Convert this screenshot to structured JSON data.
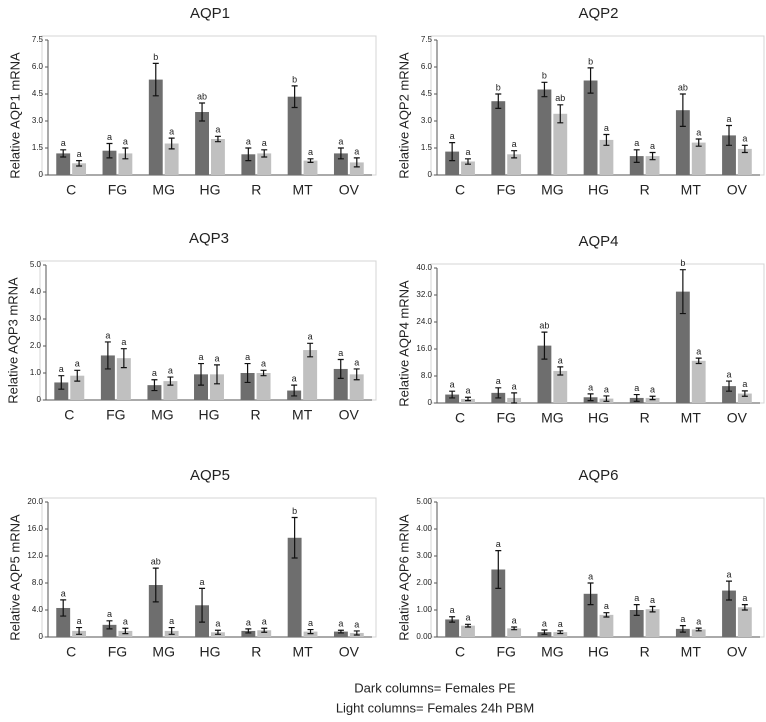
{
  "chart_data": [
    {
      "type": "bar",
      "title": "AQP1",
      "ylabel": "Relative AQP1 mRNA",
      "categories": [
        "C",
        "FG",
        "MG",
        "HG",
        "R",
        "MT",
        "OV"
      ],
      "ylim": [
        0,
        7.5
      ],
      "yticks": [
        0,
        1.5,
        {
          "value": 3,
          "label": "3.0"
        },
        4.5,
        {
          "value": 6,
          "label": "6.0"
        },
        7.5
      ],
      "grid": false,
      "series": [
        {
          "color": "#6e6e6e",
          "values": [
            1.2,
            1.35,
            5.3,
            3.5,
            1.15,
            4.35,
            1.2
          ],
          "errors": [
            0.2,
            0.4,
            0.9,
            0.5,
            0.35,
            0.6,
            0.3
          ],
          "annotations": [
            "a",
            "a",
            "b",
            "ab",
            "a",
            "b",
            "a"
          ]
        },
        {
          "color": "#c0c0c0",
          "values": [
            0.65,
            1.2,
            1.75,
            2.0,
            1.2,
            0.8,
            0.7
          ],
          "errors": [
            0.15,
            0.3,
            0.3,
            0.15,
            0.2,
            0.1,
            0.25
          ],
          "annotations": [
            "a",
            "a",
            "a",
            "a",
            "a",
            "a",
            "a"
          ]
        }
      ]
    },
    {
      "type": "bar",
      "title": "AQP2",
      "ylabel": "Relative AQP2 mRNA",
      "categories": [
        "C",
        "FG",
        "MG",
        "HG",
        "R",
        "MT",
        "OV"
      ],
      "ylim": [
        0,
        7.5
      ],
      "yticks": [
        0,
        1.5,
        {
          "value": 3,
          "label": "3.0"
        },
        4.5,
        {
          "value": 6,
          "label": "6.0"
        },
        7.5
      ],
      "grid": false,
      "series": [
        {
          "color": "#6e6e6e",
          "values": [
            1.3,
            4.1,
            4.75,
            5.25,
            1.05,
            3.6,
            2.2
          ],
          "errors": [
            0.5,
            0.4,
            0.4,
            0.7,
            0.35,
            0.9,
            0.55
          ],
          "annotations": [
            "a",
            "b",
            "b",
            "b",
            "a",
            "ab",
            "a"
          ]
        },
        {
          "color": "#c0c0c0",
          "values": [
            0.75,
            1.15,
            3.4,
            1.95,
            1.05,
            1.8,
            1.45
          ],
          "errors": [
            0.15,
            0.2,
            0.5,
            0.3,
            0.2,
            0.2,
            0.2
          ],
          "annotations": [
            "a",
            "a",
            "ab",
            "a",
            "a",
            "a",
            "a"
          ]
        }
      ]
    },
    {
      "type": "bar",
      "title": "AQP3",
      "ylabel": "Relative AQP3 mRNA",
      "categories": [
        "C",
        "FG",
        "MG",
        "HG",
        "R",
        "MT",
        "OV"
      ],
      "ylim": [
        0,
        5
      ],
      "yticks": [
        0,
        {
          "value": 1,
          "label": "1.0"
        },
        {
          "value": 2,
          "label": "2.0"
        },
        {
          "value": 3,
          "label": "3.0"
        },
        {
          "value": 4,
          "label": "4.0"
        },
        {
          "value": 5,
          "label": "5.0"
        }
      ],
      "grid": false,
      "series": [
        {
          "color": "#6e6e6e",
          "values": [
            0.65,
            1.65,
            0.55,
            0.95,
            1.0,
            0.35,
            1.15
          ],
          "errors": [
            0.25,
            0.5,
            0.2,
            0.4,
            0.35,
            0.2,
            0.35
          ],
          "annotations": [
            "a",
            "a",
            "a",
            "a",
            "a",
            "a",
            "a"
          ]
        },
        {
          "color": "#c0c0c0",
          "values": [
            0.9,
            1.55,
            0.7,
            0.95,
            1.0,
            1.85,
            0.95
          ],
          "errors": [
            0.2,
            0.35,
            0.15,
            0.35,
            0.1,
            0.25,
            0.2
          ],
          "annotations": [
            "a",
            "a",
            "a",
            "a",
            "a",
            "a",
            "a"
          ]
        }
      ]
    },
    {
      "type": "bar",
      "title": "AQP4",
      "ylabel": "Relative AQP4 mRNA",
      "categories": [
        "C",
        "FG",
        "MG",
        "HG",
        "R",
        "MT",
        "OV"
      ],
      "ylim": [
        0,
        40
      ],
      "yticks": [
        0,
        {
          "value": 8,
          "label": "8.0"
        },
        {
          "value": 16,
          "label": "16.0"
        },
        {
          "value": 24,
          "label": "24.0"
        },
        {
          "value": 32,
          "label": "32.0"
        },
        {
          "value": 40,
          "label": "40.0"
        }
      ],
      "grid": false,
      "series": [
        {
          "color": "#6e6e6e",
          "values": [
            2.5,
            3,
            17,
            1.7,
            1.5,
            33,
            5
          ],
          "errors": [
            1,
            1.5,
            4,
            1,
            1,
            6.5,
            1.5
          ],
          "annotations": [
            "a",
            "a",
            "ab",
            "a",
            "a",
            "b",
            "a"
          ]
        },
        {
          "color": "#c0c0c0",
          "values": [
            1.2,
            1.5,
            9.5,
            1.3,
            1.5,
            12.5,
            2.8
          ],
          "errors": [
            0.5,
            1.5,
            1.2,
            0.8,
            0.5,
            0.8,
            0.8
          ],
          "annotations": [
            "a",
            "a",
            "a",
            "a",
            "a",
            "a",
            "a"
          ]
        }
      ]
    },
    {
      "type": "bar",
      "title": "AQP5",
      "ylabel": "Relative AQP5 mRNA",
      "categories": [
        "C",
        "FG",
        "MG",
        "HG",
        "R",
        "MT",
        "OV"
      ],
      "ylim": [
        0,
        20
      ],
      "yticks": [
        0,
        {
          "value": 4,
          "label": "4.0"
        },
        {
          "value": 8,
          "label": "8.0"
        },
        {
          "value": 12,
          "label": "12.0"
        },
        {
          "value": 16,
          "label": "16.0"
        },
        {
          "value": 20,
          "label": "20.0"
        }
      ],
      "grid": false,
      "series": [
        {
          "color": "#6e6e6e",
          "values": [
            4.3,
            1.8,
            7.7,
            4.7,
            0.9,
            14.7,
            0.8
          ],
          "errors": [
            1.2,
            0.6,
            2.5,
            2.5,
            0.3,
            3,
            0.2
          ],
          "annotations": [
            "a",
            "a",
            "ab",
            "a",
            "a",
            "b",
            "a"
          ]
        },
        {
          "color": "#c0c0c0",
          "values": [
            0.9,
            0.9,
            0.9,
            0.7,
            1,
            0.8,
            0.6
          ],
          "errors": [
            0.5,
            0.4,
            0.5,
            0.3,
            0.3,
            0.3,
            0.3
          ],
          "annotations": [
            "a",
            "a",
            "a",
            "a",
            "a",
            "a",
            "a"
          ]
        }
      ]
    },
    {
      "type": "bar",
      "title": "AQP6",
      "ylabel": "Relative AQP6 mRNA",
      "categories": [
        "C",
        "FG",
        "MG",
        "HG",
        "R",
        "MT",
        "OV"
      ],
      "ylim": [
        0,
        5
      ],
      "yticks": [
        {
          "value": 0,
          "label": "0.00"
        },
        {
          "value": 1,
          "label": "1.00"
        },
        {
          "value": 2,
          "label": "2.00"
        },
        {
          "value": 3,
          "label": "3.00"
        },
        {
          "value": 4,
          "label": "4.00"
        },
        {
          "value": 5,
          "label": "5.00"
        }
      ],
      "grid": false,
      "series": [
        {
          "color": "#6e6e6e",
          "values": [
            0.65,
            2.5,
            0.18,
            1.6,
            1.0,
            0.3,
            1.72
          ],
          "errors": [
            0.1,
            0.7,
            0.08,
            0.4,
            0.2,
            0.12,
            0.35
          ],
          "annotations": [
            "a",
            "a",
            "a",
            "a",
            "a",
            "a",
            "a"
          ]
        },
        {
          "color": "#c0c0c0",
          "values": [
            0.42,
            0.32,
            0.18,
            0.82,
            1.03,
            0.28,
            1.1
          ],
          "errors": [
            0.05,
            0.05,
            0.05,
            0.08,
            0.1,
            0.05,
            0.1
          ],
          "annotations": [
            "a",
            "a",
            "a",
            "a",
            "a",
            "a",
            "a"
          ]
        }
      ]
    }
  ],
  "caption": [
    "Dark columns= Females PE",
    "Light columns= Females 24h PBM"
  ]
}
